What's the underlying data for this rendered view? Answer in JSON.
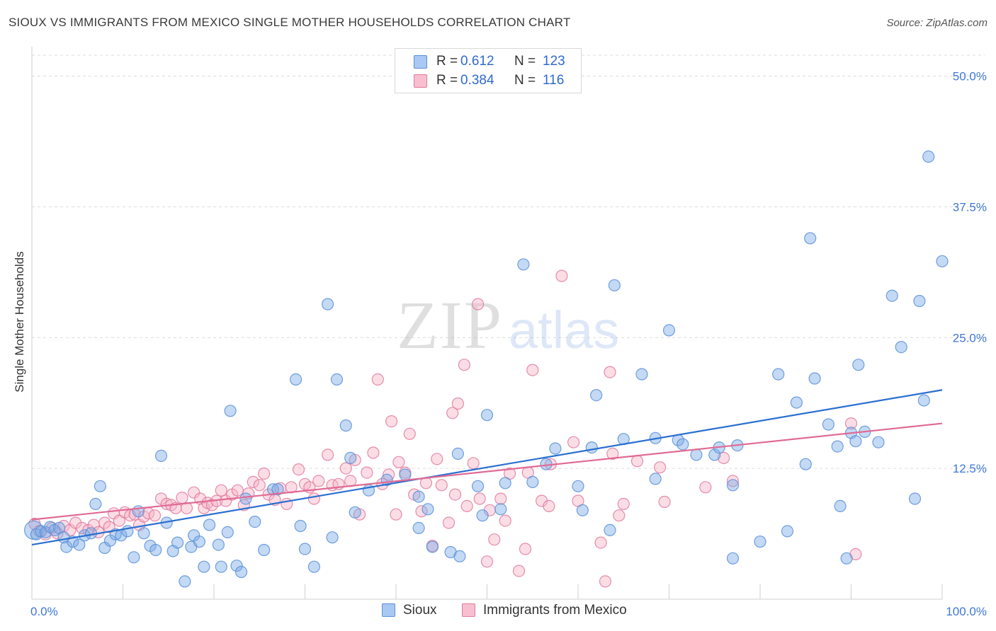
{
  "title": "SIOUX VS IMMIGRANTS FROM MEXICO SINGLE MOTHER HOUSEHOLDS CORRELATION CHART",
  "source": "Source: ZipAtlas.com",
  "watermark": {
    "zip": "ZIP",
    "atlas": "atlas"
  },
  "legend": {
    "r_label": "R =",
    "n_label": "N =",
    "rows": [
      {
        "r": "0.612",
        "n": "123",
        "color": "#a9c8f2",
        "border": "#5b8fd8"
      },
      {
        "r": "0.384",
        "n": "116",
        "color": "#f7bfd0",
        "border": "#e07a9c"
      }
    ]
  },
  "chart_data": {
    "type": "scatter",
    "title": "SIOUX VS IMMIGRANTS FROM MEXICO SINGLE MOTHER HOUSEHOLDS CORRELATION CHART",
    "xlabel": "",
    "ylabel": "Single Mother Households",
    "xlim": [
      0,
      100
    ],
    "ylim": [
      0,
      52
    ],
    "x_tick_labels": [
      "0.0%",
      "100.0%"
    ],
    "y_ticks": [
      12.5,
      25.0,
      37.5,
      50.0
    ],
    "y_tick_labels": [
      "12.5%",
      "25.0%",
      "37.5%",
      "50.0%"
    ],
    "grid": true,
    "legend_position": "top-center",
    "series": [
      {
        "name": "Sioux",
        "color": "#7aaae6",
        "edge": "#5b8fd8",
        "trend": {
          "x": [
            0,
            100
          ],
          "y": [
            5.2,
            20.0
          ],
          "color": "#2a6fd0"
        },
        "points": [
          [
            0.2,
            6.6
          ],
          [
            0.5,
            6.2
          ],
          [
            1.0,
            6.5
          ],
          [
            1.5,
            6.4
          ],
          [
            2.0,
            6.9
          ],
          [
            2.5,
            6.6
          ],
          [
            3.0,
            6.8
          ],
          [
            3.5,
            5.9
          ],
          [
            3.8,
            5.0
          ],
          [
            4.5,
            5.5
          ],
          [
            5.2,
            5.2
          ],
          [
            5.8,
            6.1
          ],
          [
            6.5,
            6.3
          ],
          [
            7.0,
            9.1
          ],
          [
            7.5,
            10.8
          ],
          [
            8.0,
            4.9
          ],
          [
            8.6,
            5.6
          ],
          [
            9.2,
            6.2
          ],
          [
            9.8,
            6.1
          ],
          [
            10.5,
            6.5
          ],
          [
            11.2,
            4.0
          ],
          [
            11.7,
            8.4
          ],
          [
            12.3,
            6.3
          ],
          [
            13.0,
            5.1
          ],
          [
            13.6,
            4.7
          ],
          [
            14.2,
            13.7
          ],
          [
            14.8,
            7.3
          ],
          [
            15.5,
            4.6
          ],
          [
            16.0,
            5.4
          ],
          [
            16.8,
            1.7
          ],
          [
            17.5,
            5.0
          ],
          [
            17.8,
            6.1
          ],
          [
            18.4,
            5.5
          ],
          [
            18.9,
            3.1
          ],
          [
            19.5,
            7.1
          ],
          [
            20.5,
            5.2
          ],
          [
            20.8,
            3.1
          ],
          [
            21.5,
            6.4
          ],
          [
            21.8,
            18.0
          ],
          [
            22.5,
            3.2
          ],
          [
            23.0,
            2.6
          ],
          [
            23.5,
            9.6
          ],
          [
            24.5,
            7.4
          ],
          [
            25.5,
            4.7
          ],
          [
            26.5,
            10.5
          ],
          [
            27.0,
            10.5
          ],
          [
            29.0,
            21.0
          ],
          [
            29.5,
            7.0
          ],
          [
            30.0,
            4.8
          ],
          [
            31.0,
            3.1
          ],
          [
            32.5,
            28.2
          ],
          [
            33.0,
            5.9
          ],
          [
            33.5,
            21.0
          ],
          [
            34.5,
            16.6
          ],
          [
            35.0,
            13.5
          ],
          [
            35.5,
            8.3
          ],
          [
            37.0,
            10.4
          ],
          [
            39.0,
            11.4
          ],
          [
            41.0,
            11.9
          ],
          [
            42.5,
            6.8
          ],
          [
            42.5,
            9.8
          ],
          [
            43.5,
            8.6
          ],
          [
            44.0,
            5.0
          ],
          [
            46.0,
            4.5
          ],
          [
            46.8,
            13.9
          ],
          [
            47.0,
            4.1
          ],
          [
            49.0,
            10.8
          ],
          [
            49.5,
            8.0
          ],
          [
            50.0,
            17.6
          ],
          [
            51.5,
            8.6
          ],
          [
            52.0,
            11.1
          ],
          [
            54.0,
            32.0
          ],
          [
            55.0,
            11.2
          ],
          [
            56.5,
            12.9
          ],
          [
            57.5,
            14.4
          ],
          [
            60.0,
            10.8
          ],
          [
            60.5,
            8.5
          ],
          [
            61.5,
            14.5
          ],
          [
            62.0,
            19.5
          ],
          [
            63.5,
            6.6
          ],
          [
            64.0,
            30.0
          ],
          [
            65.0,
            15.3
          ],
          [
            67.0,
            21.5
          ],
          [
            68.5,
            11.5
          ],
          [
            68.5,
            15.4
          ],
          [
            70.0,
            25.7
          ],
          [
            71.0,
            15.2
          ],
          [
            71.5,
            14.8
          ],
          [
            73.0,
            13.8
          ],
          [
            75.0,
            13.8
          ],
          [
            75.5,
            14.5
          ],
          [
            77.0,
            3.9
          ],
          [
            77.0,
            10.9
          ],
          [
            77.5,
            14.7
          ],
          [
            80.0,
            5.5
          ],
          [
            82.0,
            21.5
          ],
          [
            83.0,
            6.5
          ],
          [
            84.0,
            18.8
          ],
          [
            85.0,
            12.9
          ],
          [
            85.5,
            34.5
          ],
          [
            86.0,
            21.1
          ],
          [
            87.5,
            16.7
          ],
          [
            88.5,
            14.6
          ],
          [
            88.8,
            8.9
          ],
          [
            89.5,
            3.9
          ],
          [
            90.0,
            15.9
          ],
          [
            90.5,
            15.1
          ],
          [
            90.8,
            22.4
          ],
          [
            91.5,
            16.0
          ],
          [
            93.0,
            15.0
          ],
          [
            94.5,
            29.0
          ],
          [
            95.5,
            24.1
          ],
          [
            97.0,
            9.6
          ],
          [
            97.5,
            28.5
          ],
          [
            98.0,
            19.0
          ],
          [
            98.5,
            42.3
          ],
          [
            100.0,
            32.3
          ]
        ]
      },
      {
        "name": "Immigrants from Mexico",
        "color": "#f7b3c8",
        "edge": "#e07a9c",
        "trend": {
          "x": [
            0,
            100
          ],
          "y": [
            7.6,
            16.8
          ],
          "color": "#e06a94"
        },
        "points": [
          [
            0.3,
            7.2
          ],
          [
            0.8,
            6.5
          ],
          [
            1.5,
            6.2
          ],
          [
            2.2,
            6.8
          ],
          [
            2.8,
            6.3
          ],
          [
            3.5,
            7.0
          ],
          [
            4.2,
            6.6
          ],
          [
            4.8,
            7.3
          ],
          [
            5.5,
            6.8
          ],
          [
            6.2,
            6.6
          ],
          [
            6.8,
            7.1
          ],
          [
            7.3,
            6.4
          ],
          [
            8.0,
            7.3
          ],
          [
            8.5,
            6.9
          ],
          [
            9.0,
            8.2
          ],
          [
            9.6,
            7.5
          ],
          [
            10.2,
            8.3
          ],
          [
            10.8,
            8.0
          ],
          [
            11.3,
            8.1
          ],
          [
            11.8,
            7.1
          ],
          [
            12.3,
            7.9
          ],
          [
            12.8,
            8.2
          ],
          [
            13.5,
            8.0
          ],
          [
            14.2,
            9.6
          ],
          [
            14.8,
            9.1
          ],
          [
            15.3,
            9.0
          ],
          [
            15.8,
            8.7
          ],
          [
            16.5,
            9.7
          ],
          [
            17.0,
            8.7
          ],
          [
            17.8,
            10.2
          ],
          [
            18.5,
            9.6
          ],
          [
            18.9,
            8.7
          ],
          [
            19.3,
            9.2
          ],
          [
            19.8,
            9.0
          ],
          [
            20.3,
            9.4
          ],
          [
            20.8,
            10.4
          ],
          [
            21.3,
            9.4
          ],
          [
            22.0,
            10.0
          ],
          [
            22.6,
            10.4
          ],
          [
            23.3,
            9.0
          ],
          [
            23.8,
            10.1
          ],
          [
            24.3,
            11.2
          ],
          [
            25.0,
            10.9
          ],
          [
            25.5,
            12.0
          ],
          [
            26.0,
            10.0
          ],
          [
            26.7,
            9.5
          ],
          [
            27.3,
            10.6
          ],
          [
            28.0,
            9.1
          ],
          [
            28.5,
            10.7
          ],
          [
            29.3,
            12.4
          ],
          [
            30.0,
            11.0
          ],
          [
            30.5,
            10.7
          ],
          [
            31.0,
            9.6
          ],
          [
            31.5,
            11.3
          ],
          [
            32.5,
            13.8
          ],
          [
            33.0,
            10.9
          ],
          [
            33.7,
            11.0
          ],
          [
            34.5,
            12.5
          ],
          [
            35.0,
            11.3
          ],
          [
            35.5,
            13.3
          ],
          [
            36.0,
            8.1
          ],
          [
            36.8,
            12.1
          ],
          [
            37.5,
            14.0
          ],
          [
            38.0,
            21.0
          ],
          [
            38.5,
            11.0
          ],
          [
            39.2,
            11.9
          ],
          [
            39.5,
            17.0
          ],
          [
            40.0,
            8.1
          ],
          [
            40.3,
            13.1
          ],
          [
            41.0,
            12.1
          ],
          [
            41.5,
            15.8
          ],
          [
            42.0,
            10.0
          ],
          [
            42.8,
            8.4
          ],
          [
            43.3,
            11.1
          ],
          [
            44.0,
            5.1
          ],
          [
            44.5,
            13.4
          ],
          [
            45.0,
            10.9
          ],
          [
            45.8,
            7.3
          ],
          [
            46.2,
            17.8
          ],
          [
            46.5,
            10.0
          ],
          [
            46.8,
            18.7
          ],
          [
            47.5,
            22.4
          ],
          [
            47.8,
            8.9
          ],
          [
            48.5,
            13.0
          ],
          [
            49.0,
            28.2
          ],
          [
            49.2,
            9.6
          ],
          [
            50.0,
            3.6
          ],
          [
            50.3,
            8.5
          ],
          [
            50.8,
            5.7
          ],
          [
            51.5,
            9.6
          ],
          [
            52.0,
            7.5
          ],
          [
            52.5,
            12.0
          ],
          [
            53.5,
            2.7
          ],
          [
            54.2,
            4.8
          ],
          [
            54.5,
            12.1
          ],
          [
            55.0,
            21.9
          ],
          [
            56.0,
            9.4
          ],
          [
            56.8,
            8.9
          ],
          [
            57.0,
            12.9
          ],
          [
            58.2,
            30.9
          ],
          [
            59.5,
            15.0
          ],
          [
            60.0,
            9.4
          ],
          [
            62.5,
            5.4
          ],
          [
            63.0,
            1.7
          ],
          [
            63.5,
            21.7
          ],
          [
            63.8,
            13.9
          ],
          [
            64.5,
            8.0
          ],
          [
            65.0,
            9.1
          ],
          [
            66.5,
            13.2
          ],
          [
            69.0,
            12.6
          ],
          [
            69.5,
            9.3
          ],
          [
            74.0,
            10.7
          ],
          [
            76.0,
            13.5
          ],
          [
            77.0,
            11.3
          ],
          [
            90.0,
            16.8
          ],
          [
            90.5,
            4.3
          ]
        ]
      }
    ]
  },
  "bottom_legend": [
    "Sioux",
    "Immigrants from Mexico"
  ]
}
